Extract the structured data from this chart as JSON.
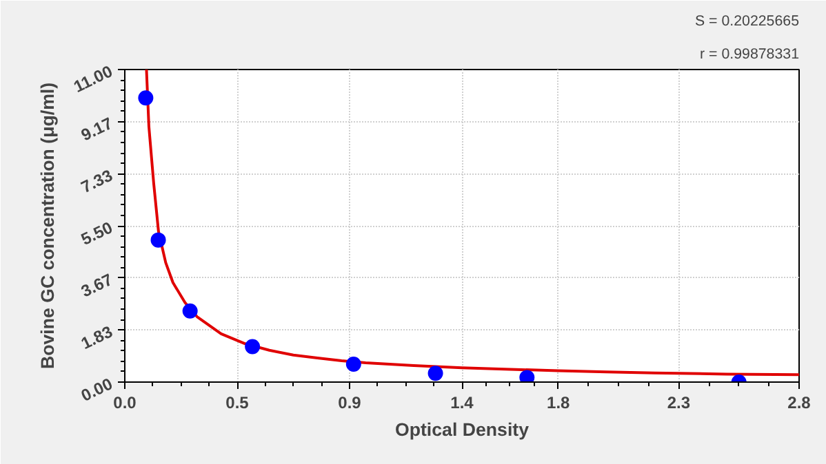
{
  "chart_data": {
    "type": "scatter",
    "xlabel": "Optical Density",
    "ylabel": "Bovine GC concentration (μg/ml)",
    "annotations": [
      "S = 0.20225665",
      "r = 0.99878331"
    ],
    "xlim": [
      0,
      2.8
    ],
    "ylim": [
      0,
      11
    ],
    "xticks": [
      {
        "value": 0,
        "label": "0.0"
      },
      {
        "value": 0.4667,
        "label": "0.5"
      },
      {
        "value": 0.9333,
        "label": "0.9"
      },
      {
        "value": 1.4,
        "label": "1.4"
      },
      {
        "value": 1.8,
        "label": "1.8"
      },
      {
        "value": 2.3,
        "label": "2.3"
      },
      {
        "value": 2.8,
        "label": "2.8"
      }
    ],
    "yticks": [
      {
        "value": 0,
        "label": "0.00"
      },
      {
        "value": 1.833,
        "label": "1.83"
      },
      {
        "value": 3.667,
        "label": "3.67"
      },
      {
        "value": 5.5,
        "label": "5.50"
      },
      {
        "value": 7.333,
        "label": "7.33"
      },
      {
        "value": 9.167,
        "label": "9.17"
      },
      {
        "value": 11,
        "label": "11.00"
      }
    ],
    "grid": true,
    "marker": "circle",
    "series": [
      {
        "color": "#0000ff",
        "x": [
          0.087,
          0.139,
          0.271,
          0.53,
          0.95,
          1.29,
          1.67,
          2.55
        ],
        "values": [
          10,
          5,
          2.5,
          1.25,
          0.63,
          0.31,
          0.16,
          0
        ]
      },
      {
        "type": "line",
        "color": "#e00000",
        "marker": "none",
        "x": [
          0.09,
          0.1,
          0.12,
          0.14,
          0.17,
          0.2,
          0.25,
          0.3,
          0.4,
          0.5,
          0.6,
          0.7,
          0.8,
          0.9,
          1.0,
          1.2,
          1.4,
          1.6,
          1.8,
          2.0,
          2.2,
          2.5,
          2.8
        ],
        "values": [
          11,
          9.0,
          7,
          5.3,
          4.2,
          3.5,
          2.8,
          2.3,
          1.7,
          1.35,
          1.12,
          0.95,
          0.85,
          0.75,
          0.68,
          0.58,
          0.5,
          0.45,
          0.4,
          0.36,
          0.32,
          0.28,
          0.26
        ]
      }
    ]
  }
}
